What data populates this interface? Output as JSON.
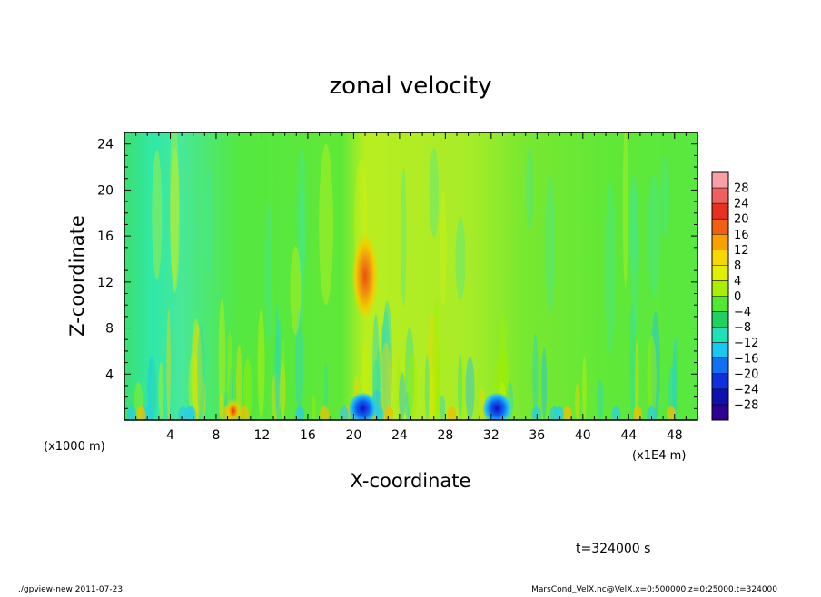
{
  "chart_data": {
    "type": "heatmap",
    "title": "zonal velocity",
    "xlabel": "X-coordinate",
    "ylabel": "Z-coordinate",
    "x_unit_label": "(x1E4 m)",
    "y_unit_label": "(x1000 m)",
    "xlim": [
      0,
      50
    ],
    "ylim": [
      0,
      25
    ],
    "x_ticks": [
      4,
      8,
      12,
      16,
      20,
      24,
      28,
      32,
      36,
      40,
      44,
      48
    ],
    "y_ticks": [
      4,
      8,
      12,
      16,
      20,
      24
    ],
    "colorbar": {
      "labels": [
        "28",
        "24",
        "20",
        "16",
        "12",
        "8",
        "4",
        "0",
        "−4",
        "−8",
        "−12",
        "−16",
        "−20",
        "−24",
        "−28"
      ],
      "colors": [
        "#f7a0a8",
        "#f06060",
        "#e83020",
        "#f06010",
        "#f8a000",
        "#f8d800",
        "#e0f000",
        "#a8f000",
        "#50e830",
        "#20d060",
        "#20e0b8",
        "#18c8f0",
        "#1070f0",
        "#1030e0",
        "#1010b0",
        "#300090"
      ]
    },
    "hotspots": [
      {
        "x": 21,
        "z": 12.5,
        "u": 20
      },
      {
        "x": 20.8,
        "z": 1,
        "u": -22
      },
      {
        "x": 32.5,
        "z": 1,
        "u": -20
      },
      {
        "x": 9.5,
        "z": 0.8,
        "u": 20
      }
    ],
    "annotations": {
      "time": "t=324000 s",
      "footer_left": "./gpview-new   2011-07-23",
      "footer_right": "MarsCond_VelX.nc@VelX,x=0:500000,z=0:25000,t=324000"
    }
  }
}
